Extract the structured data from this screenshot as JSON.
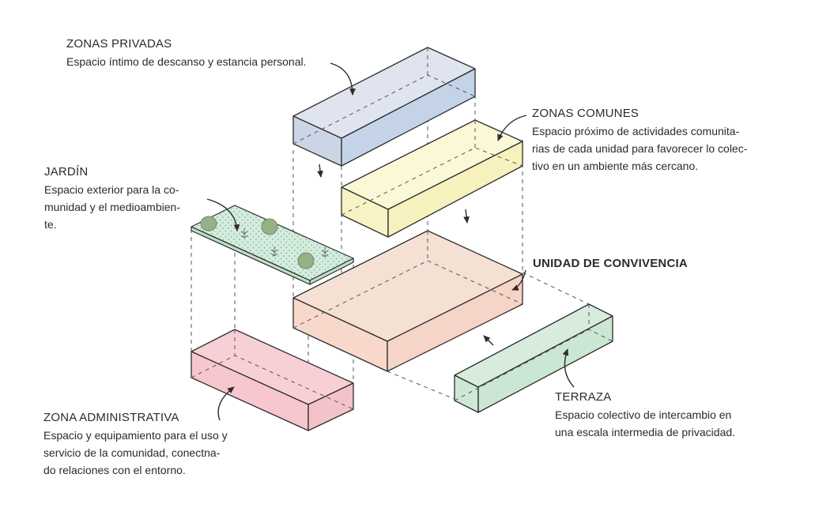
{
  "colors": {
    "privadas": "#c9d3e6",
    "comunes": "#f7f3c4",
    "convivencia": "#f6d9cc",
    "terraza": "#cfe8d6",
    "administrativa": "#f6c6cc",
    "jardin": "#cfe8d9",
    "outline": "#2d2d2d",
    "dashed": "#555555",
    "plant": "#8faa80"
  },
  "labels": {
    "privadas": {
      "title": "ZONAS PRIVADAS",
      "desc": "Espacio íntimo de descanso y estancia personal."
    },
    "comunes": {
      "title": "ZONAS COMUNES",
      "desc": "Espacio próximo de actividades comunita-\nrias de cada unidad para favorecer lo colec-\ntivo en un ambiente más cercano."
    },
    "jardin": {
      "title": "JARDÍN",
      "desc": "Espacio exterior para la co-\nmunidad y el medioambien-\nte."
    },
    "convivencia": {
      "title": "UNIDAD DE CONVIVENCIA"
    },
    "terraza": {
      "title": "TERRAZA",
      "desc": "Espacio colectivo de intercambio en\nuna escala intermedia de privacidad."
    },
    "administrativa": {
      "title": "ZONA ADMINISTRATIVA",
      "desc": "Espacio y equipamiento para el uso y\nservicio de la comunidad, conectna-\ndo relaciones con el entorno."
    }
  },
  "icons": {
    "arrow": "curved-arrow-icon",
    "plant": "plant-icon"
  }
}
